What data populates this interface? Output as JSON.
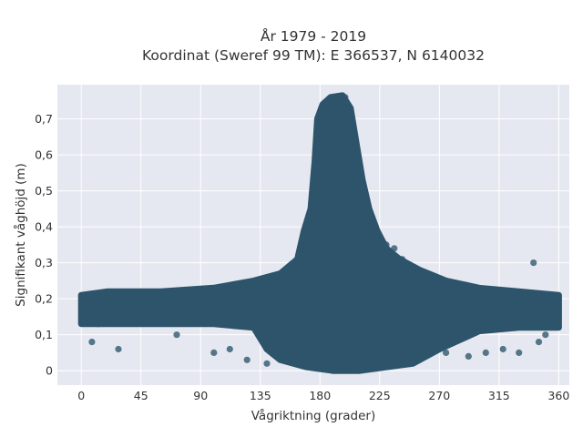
{
  "chart_data": {
    "type": "scatter",
    "title": "År 1979 - 2019",
    "subtitle": "Koordinat (Sweref 99 TM): E 366537, N 6140032",
    "xlabel": "Vågriktning (grader)",
    "ylabel": "Signifikant våghöjd (m)",
    "xlim": [
      -18,
      368
    ],
    "ylim": [
      -0.04,
      0.795
    ],
    "x_ticks": [
      0,
      45,
      90,
      135,
      180,
      225,
      270,
      315,
      360
    ],
    "x_tick_labels": [
      "0",
      "45",
      "90",
      "135",
      "180",
      "225",
      "270",
      "315",
      "360"
    ],
    "y_ticks": [
      0,
      0.1,
      0.2,
      0.3,
      0.4,
      0.5,
      0.6,
      0.7
    ],
    "y_tick_labels": [
      "0",
      "0,1",
      "0,2",
      "0,3",
      "0,4",
      "0,5",
      "0,6",
      "0,7"
    ],
    "grid": true,
    "legend": "none",
    "colors": {
      "marker": "#2d546b",
      "plot_background": "#e5e8f0",
      "gridline": "#ffffff",
      "text": "#333333"
    },
    "points": [
      [
        2,
        0.17
      ],
      [
        5,
        0.14
      ],
      [
        7,
        0.19
      ],
      [
        10,
        0.16
      ],
      [
        13,
        0.13
      ],
      [
        16,
        0.18
      ],
      [
        20,
        0.15
      ],
      [
        24,
        0.14
      ],
      [
        30,
        0.16
      ],
      [
        35,
        0.21
      ],
      [
        40,
        0.14
      ],
      [
        45,
        0.17
      ],
      [
        50,
        0.15
      ],
      [
        55,
        0.19
      ],
      [
        60,
        0.14
      ],
      [
        66,
        0.17
      ],
      [
        72,
        0.2
      ],
      [
        78,
        0.15
      ],
      [
        85,
        0.18
      ],
      [
        92,
        0.16
      ],
      [
        98,
        0.21
      ],
      [
        104,
        0.15
      ],
      [
        110,
        0.18
      ],
      [
        118,
        0.2
      ],
      [
        125,
        0.16
      ],
      [
        132,
        0.22
      ],
      [
        140,
        0.18
      ],
      [
        148,
        0.21
      ],
      [
        155,
        0.23
      ],
      [
        160,
        0.26
      ],
      [
        165,
        0.2
      ],
      [
        170,
        0.28
      ],
      [
        175,
        0.32
      ],
      [
        180,
        0.48
      ],
      [
        183,
        0.6
      ],
      [
        185,
        0.7
      ],
      [
        188,
        0.66
      ],
      [
        190,
        0.74
      ],
      [
        193,
        0.76
      ],
      [
        196,
        0.72
      ],
      [
        199,
        0.76
      ],
      [
        202,
        0.68
      ],
      [
        205,
        0.62
      ],
      [
        208,
        0.55
      ],
      [
        212,
        0.5
      ],
      [
        216,
        0.44
      ],
      [
        220,
        0.4
      ],
      [
        225,
        0.37
      ],
      [
        230,
        0.35
      ],
      [
        236,
        0.34
      ],
      [
        242,
        0.31
      ],
      [
        250,
        0.28
      ],
      [
        258,
        0.27
      ],
      [
        265,
        0.25
      ],
      [
        272,
        0.24
      ],
      [
        280,
        0.23
      ],
      [
        290,
        0.22
      ],
      [
        300,
        0.21
      ],
      [
        312,
        0.2
      ],
      [
        325,
        0.19
      ],
      [
        337,
        0.2
      ],
      [
        341,
        0.3
      ],
      [
        348,
        0.18
      ],
      [
        355,
        0.16
      ],
      [
        359,
        0.17
      ],
      [
        8,
        0.08
      ],
      [
        28,
        0.06
      ],
      [
        72,
        0.1
      ],
      [
        100,
        0.05
      ],
      [
        112,
        0.06
      ],
      [
        125,
        0.03
      ],
      [
        140,
        0.02
      ],
      [
        155,
        0.04
      ],
      [
        168,
        0.06
      ],
      [
        176,
        0.02
      ],
      [
        185,
        0.01
      ],
      [
        190,
        0.0
      ],
      [
        200,
        0.01
      ],
      [
        215,
        0.02
      ],
      [
        228,
        0.03
      ],
      [
        240,
        0.02
      ],
      [
        255,
        0.03
      ],
      [
        275,
        0.05
      ],
      [
        292,
        0.04
      ],
      [
        305,
        0.05
      ],
      [
        318,
        0.06
      ],
      [
        330,
        0.05
      ],
      [
        345,
        0.08
      ],
      [
        350,
        0.1
      ]
    ]
  }
}
